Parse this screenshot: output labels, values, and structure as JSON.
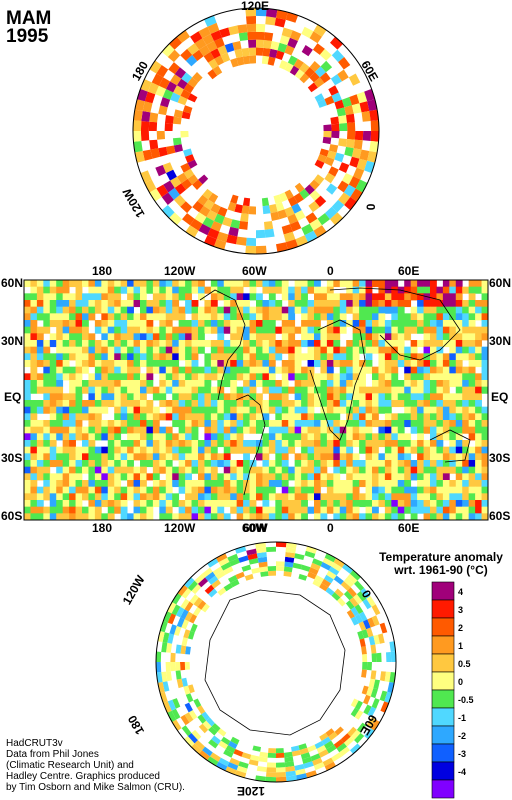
{
  "header": {
    "season": "MAM",
    "year": "1995"
  },
  "north_polar": {
    "labels": [
      "120E",
      "60E",
      "0",
      "120W",
      "180"
    ]
  },
  "main_map": {
    "top_longitudes": [
      "180",
      "120W",
      "60W",
      "0",
      "60E"
    ],
    "bottom_longitudes": [
      "180",
      "120W",
      "60W",
      "0",
      "60E"
    ],
    "latitudes": [
      "60N",
      "30N",
      "EQ",
      "30S",
      "60S"
    ]
  },
  "south_polar": {
    "labels": [
      "60W",
      "0",
      "120W",
      "180",
      "120E",
      "60E"
    ]
  },
  "legend": {
    "title_line1": "Temperature anomaly",
    "title_line2": "wrt. 1961-90  (°C)",
    "items": [
      {
        "label": "4",
        "color": "#a0007a"
      },
      {
        "label": "3",
        "color": "#ff1a00"
      },
      {
        "label": "2",
        "color": "#ff5a00"
      },
      {
        "label": "1",
        "color": "#ff9a20"
      },
      {
        "label": "0.5",
        "color": "#ffc840"
      },
      {
        "label": "0",
        "color": "#ffff80"
      },
      {
        "label": "-0.5",
        "color": "#50e850"
      },
      {
        "label": "-1",
        "color": "#50d8ff"
      },
      {
        "label": "-2",
        "color": "#2ea8ff"
      },
      {
        "label": "-3",
        "color": "#1060ff"
      },
      {
        "label": "-4",
        "color": "#0000e0"
      },
      {
        "label": "",
        "color": "#8000ff"
      }
    ]
  },
  "credits": {
    "line1": "HadCRUT3v",
    "line2": "Data from Phil Jones",
    "line3": "(Climatic Research Unit) and",
    "line4": "Hadley Centre.  Graphics produced",
    "line5": "by Tim Osborn and Mike Salmon (CRU)."
  }
}
